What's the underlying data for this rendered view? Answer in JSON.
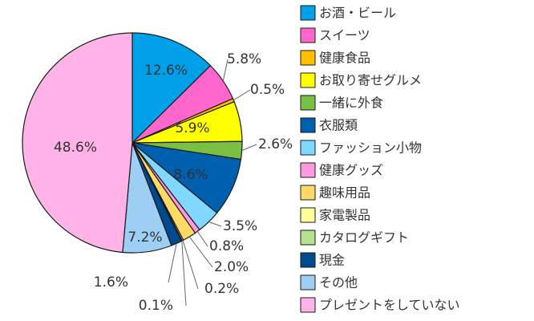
{
  "chart_data": {
    "type": "pie",
    "start_angle": "12 o'clock",
    "direction": "clockwise",
    "legend_position": "right",
    "slices": [
      {
        "label": "お酒・ビール",
        "value": 12.6,
        "value_label": "12.6%",
        "color": "#00a0e9"
      },
      {
        "label": "スイーツ",
        "value": 5.8,
        "value_label": "5.8%",
        "color": "#ff66cc"
      },
      {
        "label": "健康食品",
        "value": 0.5,
        "value_label": "0.5%",
        "color": "#ffc000"
      },
      {
        "label": "お取り寄せグルメ",
        "value": 5.9,
        "value_label": "5.9%",
        "color": "#ffff00"
      },
      {
        "label": "一緒に外食",
        "value": 2.6,
        "value_label": "2.6%",
        "color": "#7ac143"
      },
      {
        "label": "衣服類",
        "value": 8.6,
        "value_label": "8.6%",
        "color": "#0060b0"
      },
      {
        "label": "ファッション小物",
        "value": 3.5,
        "value_label": "3.5%",
        "color": "#80d8ff"
      },
      {
        "label": "健康グッズ",
        "value": 0.8,
        "value_label": "0.8%",
        "color": "#ff99dd"
      },
      {
        "label": "趣味用品",
        "value": 2.0,
        "value_label": "2.0%",
        "color": "#ffd966"
      },
      {
        "label": "家電製品",
        "value": 0.2,
        "value_label": "0.2%",
        "color": "#ffff99"
      },
      {
        "label": "カタログギフト",
        "value": 0.1,
        "value_label": "0.1%",
        "color": "#b7e08f"
      },
      {
        "label": "現金",
        "value": 1.6,
        "value_label": "1.6%",
        "color": "#004a8f"
      },
      {
        "label": "その他",
        "value": 7.2,
        "value_label": "7.2%",
        "color": "#9dcff5"
      },
      {
        "label": "プレゼントをしていない",
        "value": 48.6,
        "value_label": "48.6%",
        "color": "#ffb3e6"
      }
    ]
  }
}
